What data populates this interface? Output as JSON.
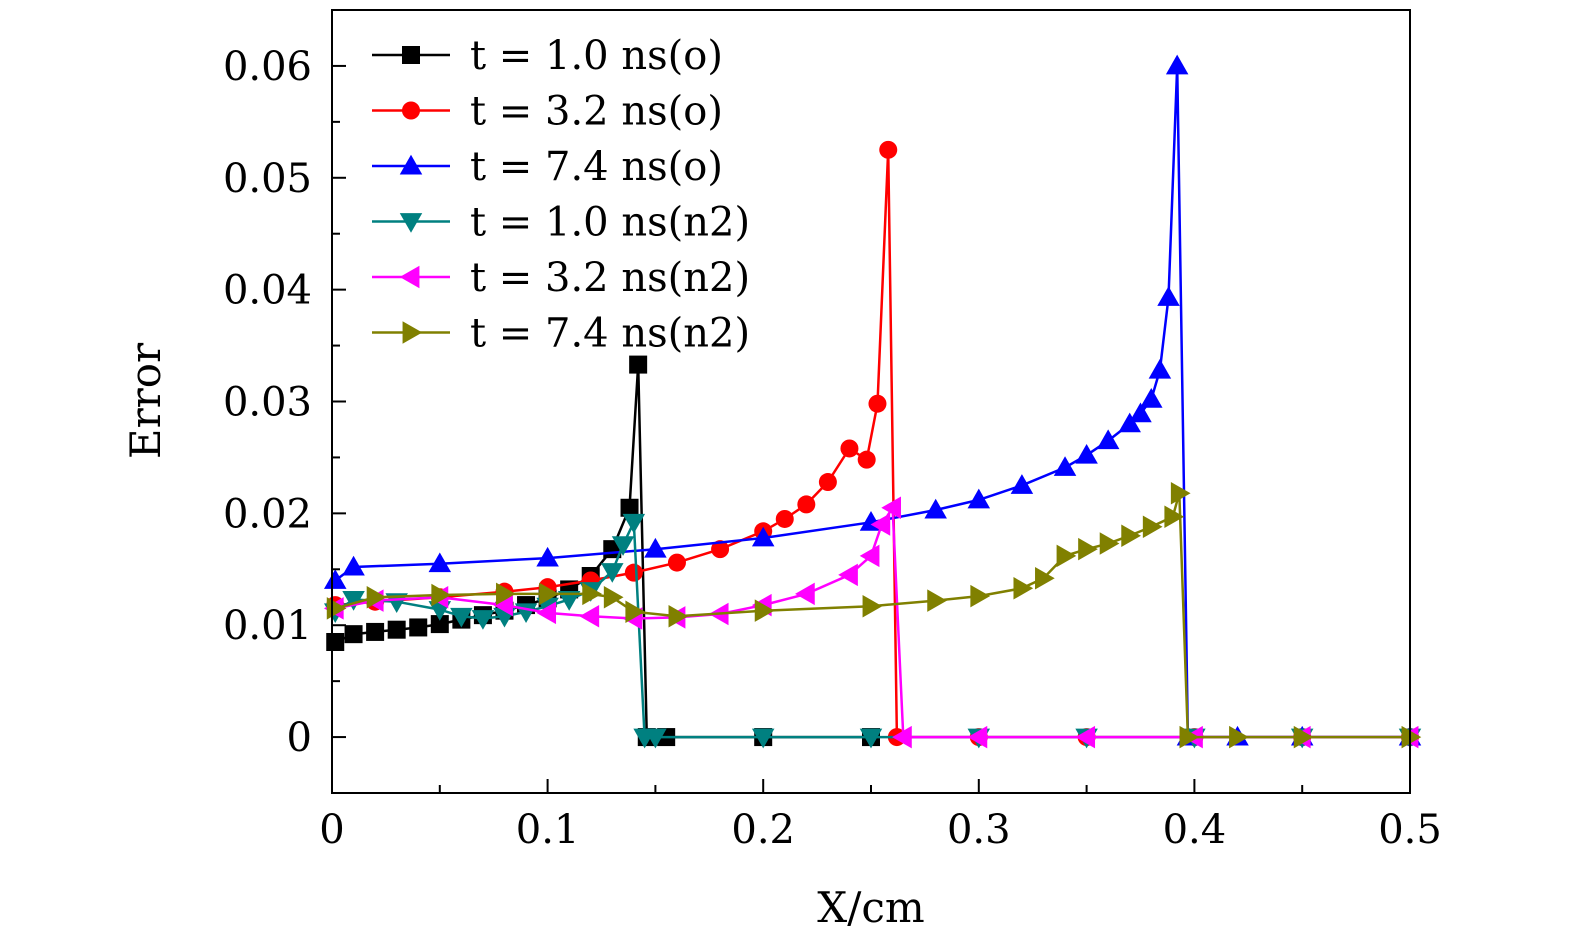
{
  "chart_data": {
    "type": "line",
    "title": "",
    "xlabel": "X/cm",
    "ylabel": "Error",
    "xlim": [
      0,
      0.5
    ],
    "ylim": [
      -0.005,
      0.065
    ],
    "xticks": [
      0,
      0.1,
      0.2,
      0.3,
      0.4,
      0.5
    ],
    "xtick_labels": [
      "0",
      "0.1",
      "0.2",
      "0.3",
      "0.4",
      "0.5"
    ],
    "yticks": [
      0,
      0.01,
      0.02,
      0.03,
      0.04,
      0.05,
      0.06
    ],
    "ytick_labels": [
      "0",
      "0.01",
      "0.02",
      "0.03",
      "0.04",
      "0.05",
      "0.06"
    ],
    "grid": false,
    "legend_position": "top-left",
    "series": [
      {
        "name": "t = 1.0 ns(o)",
        "color": "#000000",
        "marker": "square",
        "x": [
          0.0015,
          0.01,
          0.02,
          0.03,
          0.04,
          0.05,
          0.06,
          0.07,
          0.08,
          0.09,
          0.1,
          0.11,
          0.12,
          0.13,
          0.138,
          0.142,
          0.146,
          0.155,
          0.2,
          0.25
        ],
        "y": [
          0.0085,
          0.0092,
          0.0094,
          0.0096,
          0.0098,
          0.0101,
          0.0105,
          0.0109,
          0.0113,
          0.0118,
          0.0124,
          0.0132,
          0.0144,
          0.0168,
          0.0205,
          0.0333,
          0.0,
          0.0,
          0.0,
          0.0
        ]
      },
      {
        "name": "t = 3.2 ns(o)",
        "color": "#ff0000",
        "marker": "circle",
        "x": [
          0.0015,
          0.02,
          0.05,
          0.08,
          0.1,
          0.12,
          0.14,
          0.16,
          0.18,
          0.2,
          0.21,
          0.22,
          0.23,
          0.24,
          0.248,
          0.253,
          0.258,
          0.262,
          0.3,
          0.35,
          0.4,
          0.45,
          0.5
        ],
        "y": [
          0.0118,
          0.0121,
          0.0125,
          0.013,
          0.0134,
          0.014,
          0.0147,
          0.0156,
          0.0168,
          0.0184,
          0.0195,
          0.0208,
          0.0228,
          0.0258,
          0.0248,
          0.0298,
          0.0525,
          0.0,
          0.0,
          0.0,
          0.0,
          0.0,
          0.0
        ]
      },
      {
        "name": "t = 7.4 ns(o)",
        "color": "#0000ff",
        "marker": "triangle-up",
        "x": [
          0.0015,
          0.01,
          0.05,
          0.1,
          0.15,
          0.2,
          0.25,
          0.28,
          0.3,
          0.32,
          0.34,
          0.35,
          0.36,
          0.37,
          0.375,
          0.38,
          0.384,
          0.388,
          0.392,
          0.397,
          0.42,
          0.45,
          0.5
        ],
        "y": [
          0.014,
          0.0152,
          0.0155,
          0.016,
          0.0168,
          0.0178,
          0.0192,
          0.0203,
          0.0212,
          0.0225,
          0.0241,
          0.0252,
          0.0265,
          0.028,
          0.0289,
          0.0302,
          0.0328,
          0.0393,
          0.06,
          0.0,
          0.0,
          0.0,
          0.0
        ]
      },
      {
        "name": "t = 1.0 ns(n2)",
        "color": "#008080",
        "marker": "triangle-down",
        "x": [
          0.0015,
          0.01,
          0.03,
          0.05,
          0.06,
          0.07,
          0.08,
          0.09,
          0.1,
          0.11,
          0.12,
          0.13,
          0.135,
          0.14,
          0.145,
          0.15,
          0.2,
          0.25,
          0.3,
          0.35,
          0.4,
          0.45,
          0.5
        ],
        "y": [
          0.0112,
          0.0123,
          0.0121,
          0.0114,
          0.0108,
          0.0106,
          0.0108,
          0.0112,
          0.0117,
          0.0123,
          0.0131,
          0.0148,
          0.0172,
          0.0192,
          0.0,
          0.0,
          0.0,
          0.0,
          0.0,
          0.0,
          0.0,
          0.0,
          0.0
        ]
      },
      {
        "name": "t = 3.2 ns(n2)",
        "color": "#ff00ff",
        "marker": "triangle-left",
        "x": [
          0.0015,
          0.02,
          0.05,
          0.08,
          0.1,
          0.12,
          0.14,
          0.16,
          0.18,
          0.2,
          0.22,
          0.24,
          0.25,
          0.255,
          0.26,
          0.265,
          0.3,
          0.35,
          0.4,
          0.45,
          0.5
        ],
        "y": [
          0.0115,
          0.0122,
          0.0125,
          0.0118,
          0.0111,
          0.0108,
          0.0106,
          0.0107,
          0.011,
          0.0118,
          0.0128,
          0.0145,
          0.0162,
          0.019,
          0.0205,
          0.0,
          0.0,
          0.0,
          0.0,
          0.0,
          0.0
        ]
      },
      {
        "name": "t = 7.4 ns(n2)",
        "color": "#808000",
        "marker": "triangle-right",
        "x": [
          0.0015,
          0.02,
          0.05,
          0.08,
          0.1,
          0.12,
          0.13,
          0.14,
          0.16,
          0.2,
          0.25,
          0.28,
          0.3,
          0.32,
          0.33,
          0.34,
          0.35,
          0.36,
          0.37,
          0.38,
          0.39,
          0.393,
          0.397,
          0.42,
          0.45,
          0.5
        ],
        "y": [
          0.0115,
          0.0125,
          0.0127,
          0.0128,
          0.0128,
          0.0128,
          0.0125,
          0.0112,
          0.0108,
          0.0113,
          0.0117,
          0.0122,
          0.0126,
          0.0133,
          0.0142,
          0.0162,
          0.0168,
          0.0173,
          0.018,
          0.0188,
          0.0197,
          0.0218,
          0.0,
          0.0,
          0.0,
          0.0
        ]
      }
    ]
  }
}
